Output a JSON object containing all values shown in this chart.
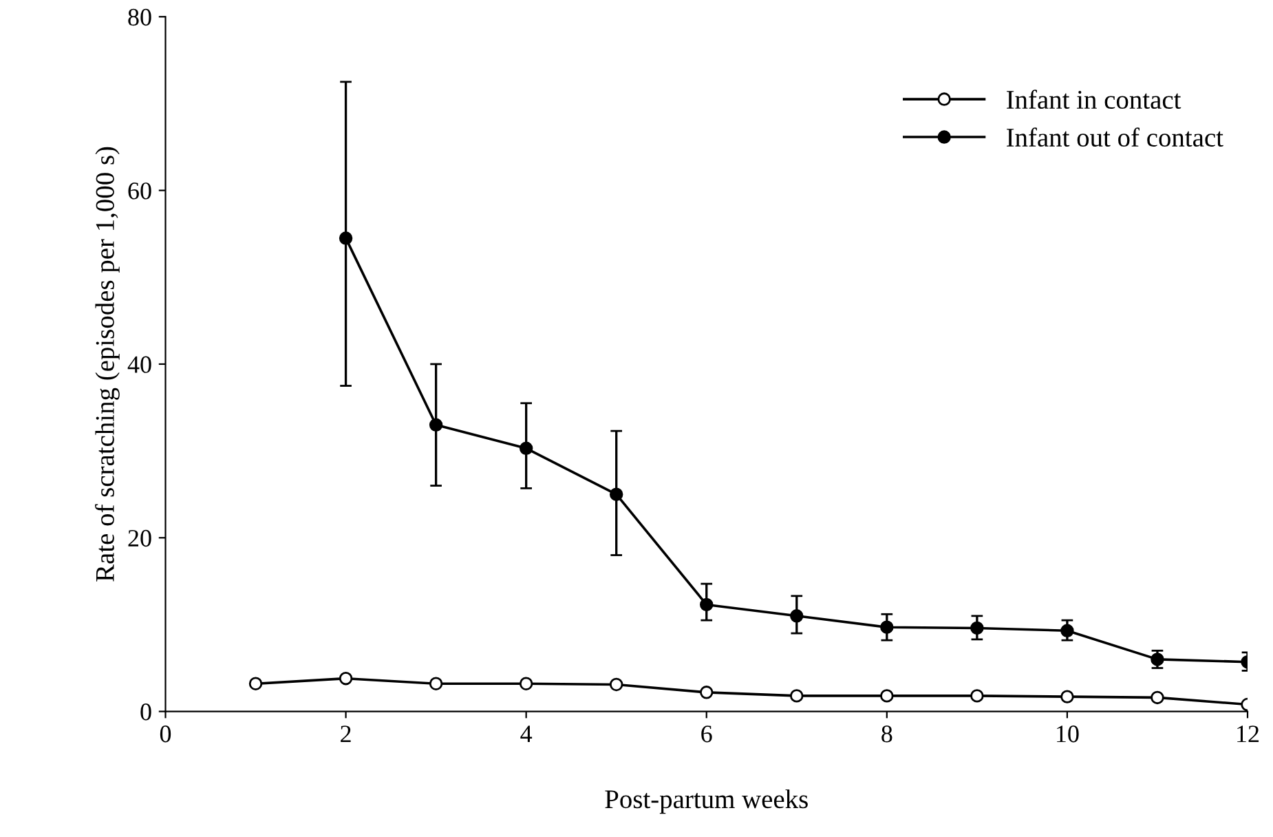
{
  "chart_data": {
    "type": "line",
    "xlabel": "Post-partum weeks",
    "ylabel": "Rate of scratching (episodes per 1,000 s)",
    "xlim": [
      0,
      12
    ],
    "xticks": [
      0,
      2,
      4,
      6,
      8,
      10,
      12
    ],
    "ylim": [
      0,
      80
    ],
    "yticks": [
      0,
      20,
      40,
      60,
      80
    ],
    "grid": false,
    "legend": "right",
    "marker": "circle",
    "line_style": "solid",
    "series": [
      {
        "name": "Infant in contact",
        "color": "#ffffff",
        "x": [
          1,
          2,
          3,
          4,
          5,
          6,
          7,
          8,
          9,
          10,
          11,
          12
        ],
        "values": [
          3.2,
          3.8,
          3.2,
          3.2,
          3.1,
          2.2,
          1.8,
          1.8,
          1.8,
          1.7,
          1.6,
          0.8
        ]
      },
      {
        "name": "Infant out of contact",
        "color": "#000000",
        "x": [
          2,
          3,
          4,
          5,
          6,
          7,
          8,
          9,
          10,
          11,
          12
        ],
        "values": [
          54.5,
          33,
          30.3,
          25,
          12.3,
          11,
          9.7,
          9.6,
          9.3,
          6,
          5.7
        ],
        "errors": [
          [
            37.5,
            72.5
          ],
          [
            26,
            40
          ],
          [
            25.7,
            35.5
          ],
          [
            18,
            32.3
          ],
          [
            10.5,
            14.7
          ],
          [
            9,
            13.3
          ],
          [
            8.2,
            11.2
          ],
          [
            8.3,
            11
          ],
          [
            8.2,
            10.5
          ],
          [
            5,
            7
          ],
          [
            4.7,
            6.8
          ]
        ]
      }
    ]
  }
}
